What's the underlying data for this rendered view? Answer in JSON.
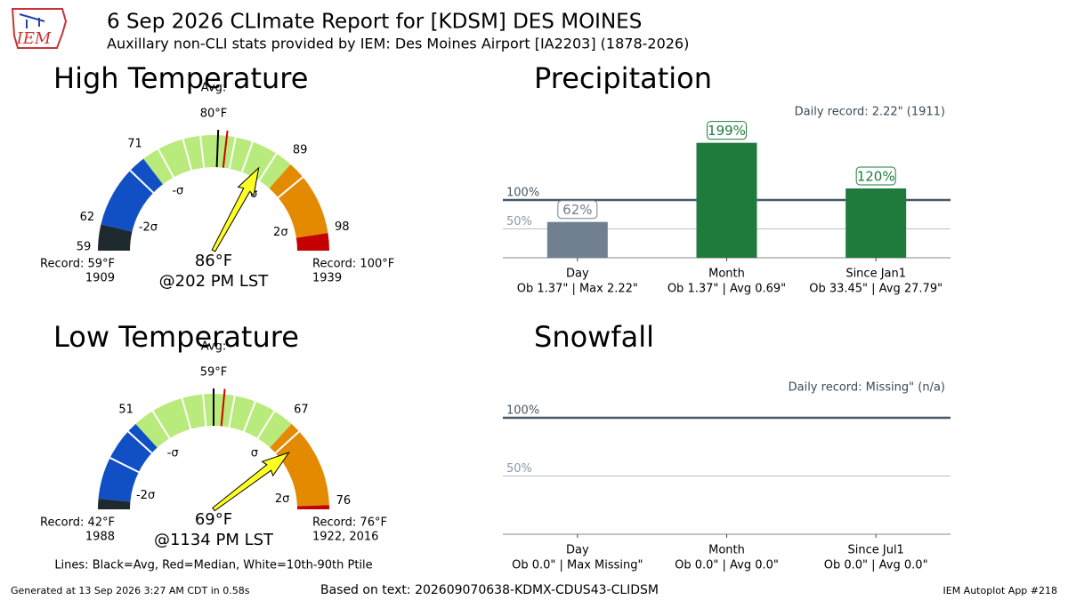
{
  "header": {
    "logo": "IEM",
    "title": "6 Sep 2026 CLImate Report for [KDSM] DES MOINES",
    "subtitle": "Auxillary non-CLI stats provided by IEM: Des Moines Airport [IA2203] (1878-2026)"
  },
  "note": "Lines: Black=Avg, Red=Median, White=10th-90th Ptile",
  "footer": {
    "generated": "Generated at 13 Sep 2026 3:27 AM CDT in 0.58s",
    "source": "Based on text: 202609070638-KDMX-CDUS43-CLIDSM",
    "app": "IEM Autoplot App #218"
  },
  "chart_data": [
    {
      "type": "gauge",
      "title": "High Temperature",
      "record_low": {
        "value": 59,
        "label": "Record: 59°F",
        "year": "1909"
      },
      "record_high": {
        "value": 100,
        "label": "Record: 100°F",
        "year": "1939"
      },
      "avg_title": "Avg:",
      "avg": {
        "value": 80,
        "label": "80°F"
      },
      "median": 81,
      "sigma_labels": [
        "-2σ",
        "-σ",
        "σ",
        "2σ"
      ],
      "sigma_values": [
        62,
        71,
        89,
        98
      ],
      "ticks": [
        59,
        62,
        71,
        89,
        98
      ],
      "percentiles": [
        69,
        73,
        76,
        78,
        80,
        82,
        84,
        87,
        91
      ],
      "observed": {
        "value": 86,
        "label": "86°F",
        "time": "@202 PM LST"
      },
      "colors": [
        "#1f2a30",
        "#1150c4",
        "#b9ea7c",
        "#e38a00",
        "#c40000"
      ],
      "needle_color": "#ffff22"
    },
    {
      "type": "gauge",
      "title": "Low Temperature",
      "record_low": {
        "value": 42,
        "label": "Record: 42°F",
        "year": "1988"
      },
      "record_high": {
        "value": 76,
        "label": "Record: 76°F",
        "year": "1922, 2016"
      },
      "avg_title": "Avg:",
      "avg": {
        "value": 59,
        "label": "59°F"
      },
      "median": 60,
      "sigma_labels": [
        "-2σ",
        "-σ",
        "σ",
        "2σ"
      ],
      "sigma_values": [
        43,
        51,
        67,
        75.6
      ],
      "ticks": [
        51,
        67,
        {
          "value": 75.6,
          "label": "76"
        }
      ],
      "percentiles": [
        47,
        50,
        53,
        56,
        58,
        61,
        63,
        65,
        68
      ],
      "observed": {
        "value": 69,
        "label": "69°F",
        "time": "@1134 PM LST"
      },
      "colors": [
        "#1f2a30",
        "#1150c4",
        "#b9ea7c",
        "#e38a00",
        "#c40000"
      ],
      "needle_color": "#ffff22"
    },
    {
      "type": "bar",
      "title": "Precipitation",
      "annotation": "Daily record: 2.22\" (1911)",
      "categories": [
        "Day",
        "Month",
        "Since Jan1"
      ],
      "details": [
        "Ob 1.37\" | Max 2.22\"",
        "Ob 1.37\" | Avg 0.69\"",
        "Ob 33.45\" | Avg 27.79\""
      ],
      "values": [
        62,
        199,
        120
      ],
      "value_labels": [
        "62%",
        "199%",
        "120%"
      ],
      "colors": [
        "#708090",
        "#1e7b3c",
        "#1e7b3c"
      ],
      "ylim": [
        0,
        280
      ],
      "yticks": [
        {
          "value": 50,
          "label": "50%"
        },
        {
          "value": 100,
          "label": "100%"
        }
      ],
      "tick_colors": [
        "#8a98a8",
        "#465865"
      ]
    },
    {
      "type": "bar",
      "title": "Snowfall",
      "annotation": "Daily record: Missing\" (n/a)",
      "categories": [
        "Day",
        "Month",
        "Since Jul1"
      ],
      "details": [
        "Ob 0.0\" | Max Missing\"",
        "Ob 0.0\" | Avg 0.0\"",
        "Ob 0.0\" | Avg 0.0\""
      ],
      "values": [
        null,
        null,
        null
      ],
      "value_labels": [
        null,
        null,
        null
      ],
      "colors": [
        "#708090",
        "#1e7b3c",
        "#1e7b3c"
      ],
      "ylim": [
        0,
        125
      ],
      "yticks": [
        {
          "value": 50,
          "label": "50%"
        },
        {
          "value": 100,
          "label": "100%"
        }
      ],
      "tick_colors": [
        "#8a98a8",
        "#465865"
      ]
    }
  ]
}
